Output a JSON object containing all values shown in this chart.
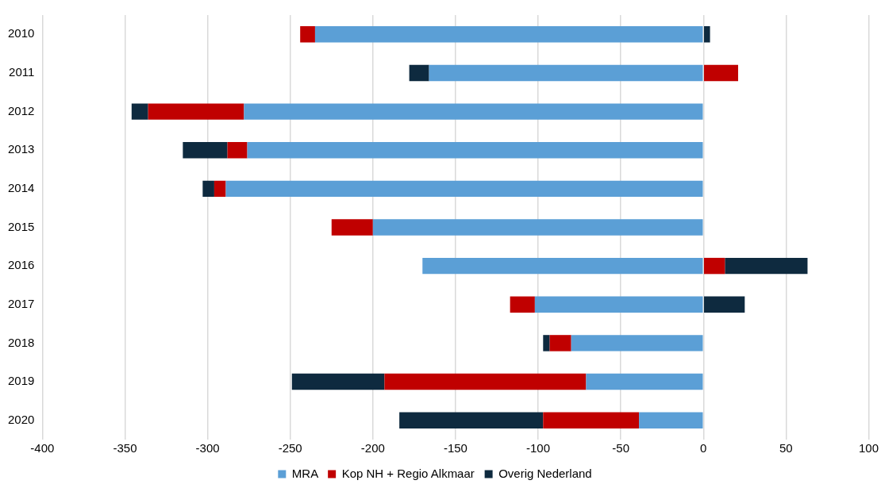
{
  "chart_data": {
    "type": "bar",
    "orientation": "horizontal",
    "stacked": true,
    "categories": [
      "2010",
      "2011",
      "2012",
      "2013",
      "2014",
      "2015",
      "2016",
      "2017",
      "2018",
      "2019",
      "2020"
    ],
    "series": [
      {
        "name": "MRA",
        "color": "#5b9fd6",
        "values": [
          -235,
          -166,
          -278,
          -276,
          -289,
          -200,
          -170,
          -102,
          -80,
          -71,
          -39
        ]
      },
      {
        "name": "Kop NH + Regio Alkmaar",
        "color": "#c00000",
        "values": [
          -9,
          21,
          -58,
          -12,
          -7,
          -25,
          13,
          -15,
          -13,
          -122,
          -58
        ]
      },
      {
        "name": "Overig Nederland",
        "color": "#0e2a3f",
        "values": [
          4,
          -12,
          -10,
          -27,
          -7,
          0,
          50,
          25,
          -4,
          -56,
          -87
        ]
      }
    ],
    "xlim": [
      -400,
      100
    ],
    "xticks": [
      -400,
      -350,
      -300,
      -250,
      -200,
      -150,
      -100,
      -50,
      0,
      50,
      100
    ],
    "grid": "x",
    "legend": "bottom"
  }
}
